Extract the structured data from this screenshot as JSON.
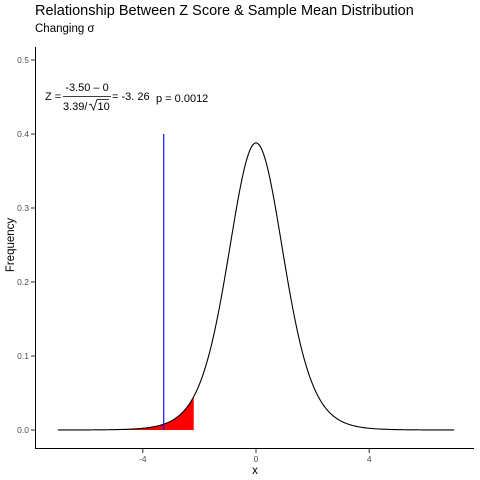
{
  "chart_data": {
    "type": "area",
    "title": "Relationship Between Z Score & Sample Mean Distribution",
    "subtitle": "Changing σ",
    "xlabel": "x",
    "ylabel": "Frequency",
    "xlim": [
      -7.0,
      7.0
    ],
    "ylim": [
      0,
      0.5
    ],
    "x_ticks": [
      -4,
      0,
      4
    ],
    "x_tick_labels": [
      "-4",
      "0",
      "4"
    ],
    "y_ticks": [
      0.0,
      0.1,
      0.2,
      0.3,
      0.4,
      0.5
    ],
    "y_tick_labels": [
      "0.0",
      "0.1",
      "0.2",
      "0.3",
      "0.4",
      "0.5"
    ],
    "grid": false,
    "series": [
      {
        "kind": "density-curve",
        "distribution": "t",
        "df": 9,
        "x_range": [
          -7,
          7
        ],
        "color": "#000000"
      },
      {
        "kind": "shaded-tail",
        "x_range": [
          -7,
          -2.2
        ],
        "color": "#ff0000"
      },
      {
        "kind": "vertical-line",
        "x": -3.26,
        "y_range": [
          0,
          0.4
        ],
        "color": "#0000ff"
      }
    ],
    "annotation": {
      "lhs": "Z =",
      "numerator": "-3.50 – 0",
      "denominator_value": "3.39/",
      "denominator_root": "10",
      "result": "= -3. 26",
      "p_text": "p =  0.0012"
    }
  }
}
